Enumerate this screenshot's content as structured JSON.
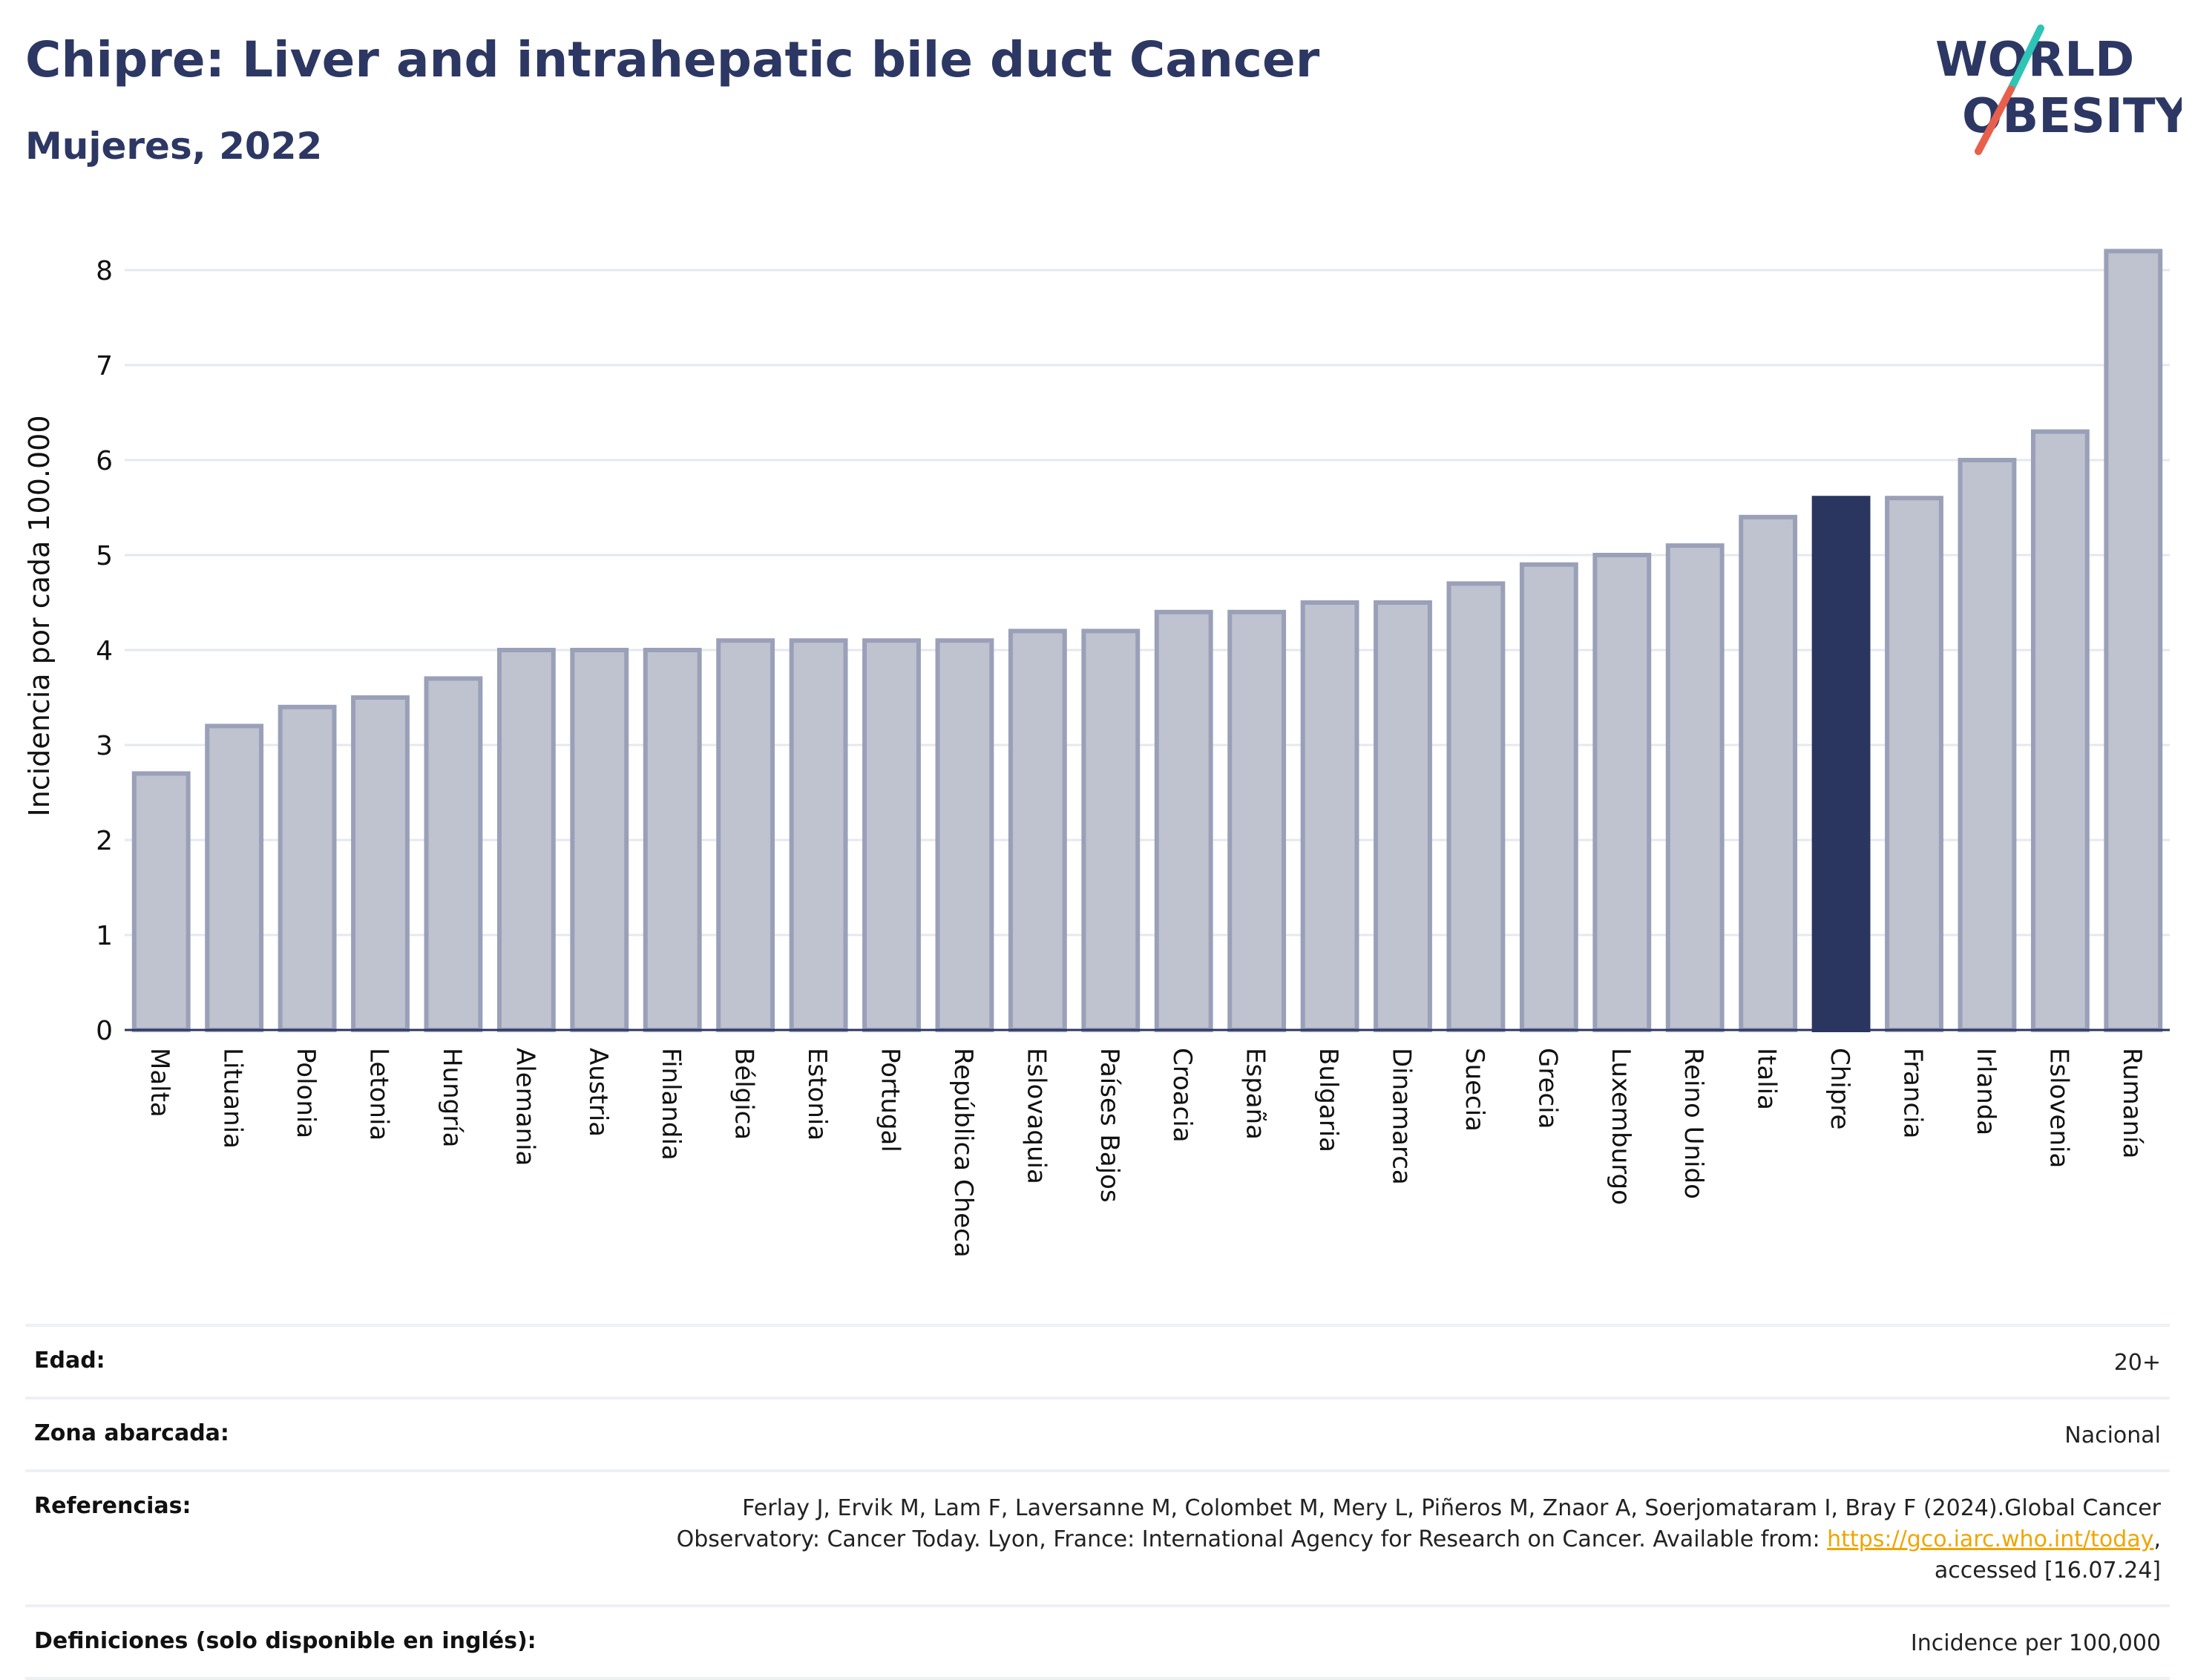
{
  "header": {
    "title": "Chipre: Liver and intrahepatic bile duct Cancer",
    "subtitle": "Mujeres, 2022"
  },
  "logo": {
    "line1": "WORLD",
    "line2": "OBESITY",
    "slash_colors": [
      "#2ec4b6",
      "#e8604c"
    ]
  },
  "colors": {
    "bar": "#bfc2cf",
    "bar_border": "#9aa0b8",
    "highlight": "#2b3660",
    "axis": "#2b3660",
    "grid": "#e6e8ef"
  },
  "chart_data": {
    "type": "bar",
    "categories": [
      "Malta",
      "Lituania",
      "Polonia",
      "Letonia",
      "Hungría",
      "Alemania",
      "Austria",
      "Finlandia",
      "Bélgica",
      "Estonia",
      "Portugal",
      "República Checa",
      "Eslovaquia",
      "Países Bajos",
      "Croacia",
      "España",
      "Bulgaria",
      "Dinamarca",
      "Suecia",
      "Grecia",
      "Luxemburgo",
      "Reino Unido",
      "Italia",
      "Chipre",
      "Francia",
      "Irlanda",
      "Eslovenia",
      "Rumanía"
    ],
    "values": [
      2.7,
      3.2,
      3.4,
      3.5,
      3.7,
      4.0,
      4.0,
      4.0,
      4.1,
      4.1,
      4.1,
      4.1,
      4.2,
      4.2,
      4.4,
      4.4,
      4.5,
      4.5,
      4.7,
      4.9,
      5.0,
      5.1,
      5.4,
      5.6,
      5.6,
      6.0,
      6.3,
      8.2
    ],
    "highlight": "Chipre",
    "ylabel": "Incidencia por cada 100.000",
    "xlabel": "",
    "ylim": [
      0,
      8.5
    ],
    "yticks": [
      0,
      1,
      2,
      3,
      4,
      5,
      6,
      7,
      8
    ],
    "grid": true
  },
  "info": {
    "edad_label": "Edad:",
    "edad_value": "20+",
    "zona_label": "Zona abarcada:",
    "zona_value": "Nacional",
    "ref_label": "Referencias:",
    "ref_text_1": "Ferlay J, Ervik M, Lam F, Laversanne M, Colombet M, Mery L, Piñeros M, Znaor A, Soerjomataram I, Bray F (2024).Global Cancer Observatory: Cancer Today. Lyon, France: International Agency for Research on Cancer. Available from: ",
    "ref_link": "https://gco.iarc.who.int/today",
    "ref_text_2": ", accessed [16.07.24]",
    "def_label": "Definiciones (solo disponible en inglés):",
    "def_value": "Incidence per 100,000"
  }
}
